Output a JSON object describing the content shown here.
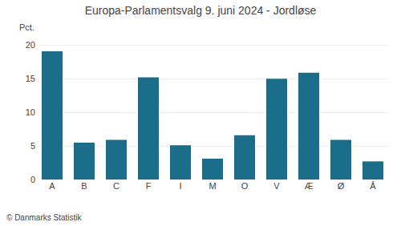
{
  "chart_data": {
    "type": "bar",
    "title": "Europa-Parlamentsvalg 9. juni 2024 - Jordløse",
    "ylabel": "Pct.",
    "annotations": [
      "© Danmarks Statistik"
    ],
    "categories": [
      "A",
      "B",
      "C",
      "F",
      "I",
      "M",
      "O",
      "V",
      "Æ",
      "Ø",
      "Å"
    ],
    "values": [
      19.1,
      5.5,
      5.9,
      15.2,
      5.1,
      3.1,
      6.6,
      15.0,
      15.9,
      5.9,
      2.7
    ],
    "color": "#1a6e8a",
    "ylim": [
      0,
      21
    ],
    "yticks": [
      0,
      5,
      10,
      15,
      20
    ],
    "grid": true
  }
}
